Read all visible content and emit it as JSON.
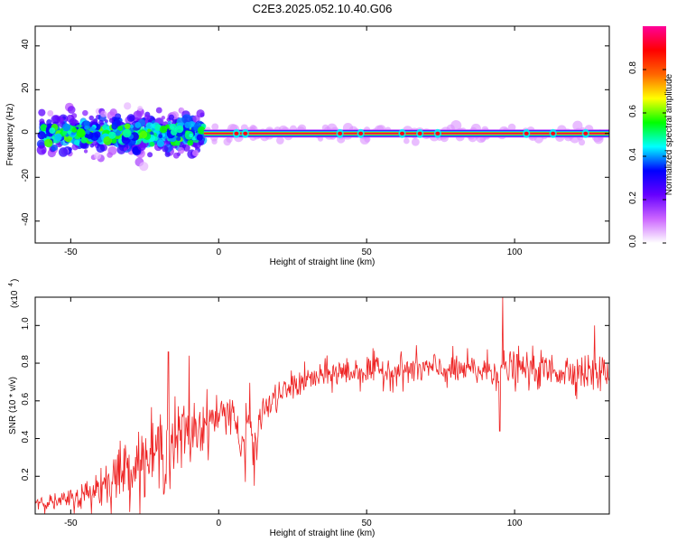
{
  "title": "C2E3.2025.052.10.40.G06",
  "chart_data": [
    {
      "type": "heatmap",
      "xlabel": "Height of straight line (km)",
      "ylabel": "Frequency (Hz)",
      "xlim": [
        -62,
        132
      ],
      "ylim": [
        -50,
        49
      ],
      "xticks": [
        -50,
        0,
        50,
        100
      ],
      "yticks": [
        -40,
        -20,
        0,
        20,
        40
      ],
      "xtick_labels": [
        "-50",
        "0",
        "50",
        "100"
      ],
      "ytick_labels": [
        "-40",
        "-20",
        "0",
        "20",
        "40"
      ],
      "colorbar": {
        "label": "Normalized spectral amplitude",
        "range": [
          0,
          1
        ],
        "ticks": [
          0.0,
          0.2,
          0.4,
          0.6,
          0.8
        ],
        "tick_labels": [
          "0.0",
          "0.2",
          "0.4",
          "0.6",
          "0.8"
        ],
        "colors": [
          "#ffffff",
          "#cc66ff",
          "#6600ff",
          "#0000ff",
          "#00ffff",
          "#00ff00",
          "#ffff00",
          "#ff6600",
          "#ff0000",
          "#ff0099"
        ]
      },
      "ridge": {
        "frequency_hz": 0,
        "x_start": -5,
        "x_end": 132,
        "amplitude": 0.95
      },
      "scatter_region": {
        "x_start": -60,
        "x_end": -5,
        "freq_spread_hz": 10
      },
      "bright_blobs_x": [
        6,
        9,
        41,
        48,
        62,
        68,
        74,
        104,
        113,
        124
      ]
    },
    {
      "type": "line",
      "xlabel": "Height of straight line (km)",
      "ylabel": "SNR (10 * v/v)",
      "y_multiplier_label": "(x10",
      "y_multiplier_exp": "4",
      "xlim": [
        -62,
        132
      ],
      "ylim": [
        0,
        1.15
      ],
      "xticks": [
        -50,
        0,
        50,
        100
      ],
      "yticks": [
        0.2,
        0.4,
        0.6,
        0.8,
        1.0
      ],
      "xtick_labels": [
        "-50",
        "0",
        "50",
        "100"
      ],
      "ytick_labels": [
        "0.2",
        "0.4",
        "0.6",
        "0.8",
        "1.0"
      ],
      "color": "#ee2222",
      "series": [
        {
          "x": [
            -62,
            -55,
            -50,
            -45,
            -40,
            -35,
            -30,
            -25,
            -20,
            -15,
            -10,
            -5,
            0,
            5,
            8,
            10,
            12,
            15,
            20,
            25,
            30,
            35,
            40,
            50,
            60,
            70,
            80,
            90,
            100,
            110,
            120,
            130,
            132
          ],
          "values": [
            0.07,
            0.06,
            0.08,
            0.1,
            0.15,
            0.2,
            0.26,
            0.28,
            0.33,
            0.38,
            0.43,
            0.48,
            0.52,
            0.56,
            0.3,
            0.55,
            0.35,
            0.55,
            0.62,
            0.68,
            0.71,
            0.73,
            0.75,
            0.76,
            0.76,
            0.77,
            0.76,
            0.76,
            0.77,
            0.76,
            0.76,
            0.74,
            0.75
          ],
          "noise": [
            0.04,
            0.04,
            0.05,
            0.08,
            0.12,
            0.14,
            0.16,
            0.17,
            0.2,
            0.2,
            0.18,
            0.14,
            0.1,
            0.1,
            0.12,
            0.14,
            0.1,
            0.08,
            0.07,
            0.07,
            0.07,
            0.07,
            0.08,
            0.08,
            0.08,
            0.08,
            0.08,
            0.09,
            0.09,
            0.09,
            0.09,
            0.09,
            0.09
          ],
          "features": [
            {
              "x": 96,
              "y": 1.15
            },
            {
              "x": 95,
              "y": 0.44
            },
            {
              "x": 9,
              "y": 0.17
            },
            {
              "x": 12,
              "y": 0.15
            },
            {
              "x": -17,
              "y": 0.86
            },
            {
              "x": -10,
              "y": 0.84
            },
            {
              "x": 127,
              "y": 1.0
            }
          ]
        }
      ]
    }
  ]
}
